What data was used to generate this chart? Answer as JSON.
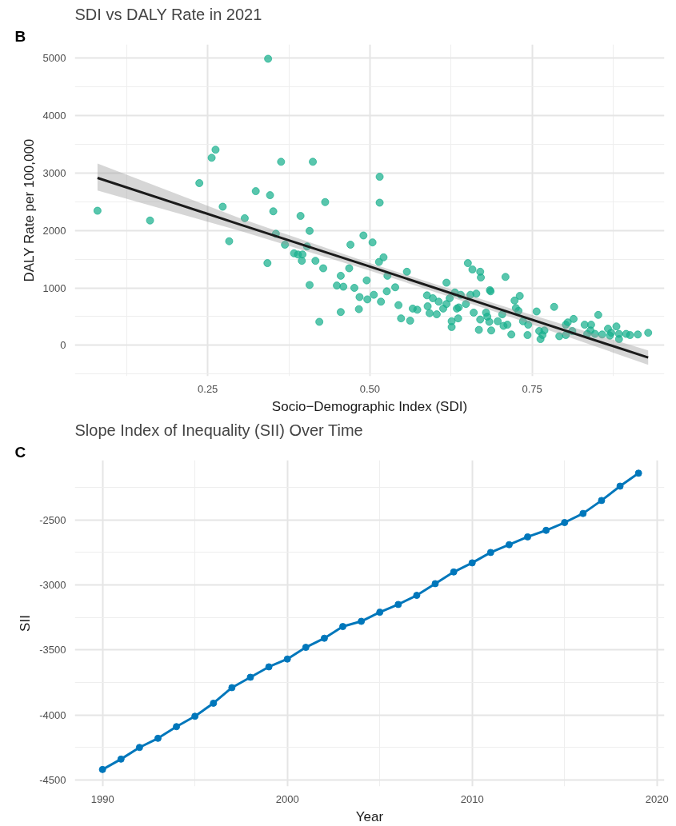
{
  "chart_data": [
    {
      "type": "scatter",
      "title": "SDI vs DALY Rate in 2021",
      "xlabel": "Socio−Demographic Index (SDI)",
      "ylabel": "DALY Rate per 100,000",
      "annotations": [
        "B"
      ],
      "xlim": [
        0.045,
        0.954
      ],
      "ylim": [
        -535,
        5230
      ],
      "xticks": [
        0.25,
        {
          "value": 0.5,
          "label": "0.50"
        },
        0.75
      ],
      "yticks": [
        0,
        1000,
        2000,
        3000,
        4000,
        5000
      ],
      "grid": true,
      "marker": "circle",
      "series": [
        {
          "type": "scatter",
          "color": "#19b08d",
          "x": [
            0.343,
            0.08,
            0.161,
            0.262,
            0.256,
            0.237,
            0.363,
            0.412,
            0.273,
            0.324,
            0.346,
            0.431,
            0.307,
            0.351,
            0.393,
            0.283,
            0.355,
            0.407,
            0.369,
            0.403,
            0.383,
            0.389,
            0.396,
            0.395,
            0.416,
            0.428,
            0.342,
            0.455,
            0.47,
            0.49,
            0.504,
            0.468,
            0.407,
            0.449,
            0.459,
            0.476,
            0.495,
            0.484,
            0.496,
            0.506,
            0.455,
            0.483,
            0.422,
            0.515,
            0.515,
            0.521,
            0.514,
            0.557,
            0.527,
            0.618,
            0.539,
            0.526,
            0.517,
            0.544,
            0.548,
            0.562,
            0.566,
            0.573,
            0.588,
            0.597,
            0.606,
            0.589,
            0.592,
            0.603,
            0.618,
            0.613,
            0.623,
            0.631,
            0.634,
            0.637,
            0.626,
            0.626,
            0.636,
            0.64,
            0.648,
            0.651,
            0.658,
            0.67,
            0.671,
            0.655,
            0.664,
            0.66,
            0.67,
            0.668,
            0.679,
            0.681,
            0.685,
            0.686,
            0.687,
            0.684,
            0.697,
            0.704,
            0.709,
            0.712,
            0.706,
            0.718,
            0.723,
            0.731,
            0.725,
            0.729,
            0.736,
            0.744,
            0.743,
            0.757,
            0.761,
            0.766,
            0.763,
            0.769,
            0.784,
            0.792,
            0.802,
            0.805,
            0.802,
            0.814,
            0.812,
            0.831,
            0.841,
            0.84,
            0.852,
            0.835,
            0.847,
            0.858,
            0.867,
            0.872,
            0.88,
            0.87,
            0.884,
            0.895,
            0.884,
            0.901,
            0.913,
            0.929
          ],
          "values": [
            4980,
            2340,
            2170,
            3400,
            3260,
            2820,
            3190,
            3190,
            2410,
            2680,
            2610,
            2490,
            2210,
            2330,
            2250,
            1810,
            1940,
            1990,
            1750,
            1720,
            1600,
            1580,
            1580,
            1470,
            1470,
            1340,
            1430,
            1210,
            1750,
            1910,
            1790,
            1340,
            1050,
            1040,
            1020,
            1000,
            1130,
            840,
            800,
            880,
            580,
            630,
            410,
            2930,
            2480,
            1530,
            1450,
            1280,
            1210,
            1090,
            1010,
            940,
            760,
            700,
            470,
            430,
            640,
            620,
            870,
            820,
            760,
            680,
            560,
            540,
            720,
            640,
            820,
            920,
            640,
            660,
            420,
            320,
            470,
            880,
            720,
            1430,
            1320,
            1280,
            1180,
            880,
            900,
            570,
            450,
            270,
            570,
            500,
            960,
            940,
            260,
            410,
            420,
            540,
            1190,
            360,
            340,
            190,
            780,
            860,
            650,
            600,
            420,
            360,
            180,
            590,
            250,
            180,
            110,
            260,
            670,
            160,
            360,
            400,
            180,
            460,
            250,
            360,
            360,
            260,
            530,
            200,
            200,
            190,
            290,
            220,
            330,
            170,
            200,
            200,
            110,
            180,
            190,
            220
          ]
        },
        {
          "type": "line",
          "color": "#1a1a1a",
          "marker": "none",
          "x": [
            0.08,
            0.3,
            0.5,
            0.7,
            0.929
          ],
          "values": [
            2910,
            2100,
            1370,
            630,
            -210
          ],
          "lower": [
            2690,
            1990,
            1300,
            560,
            -336
          ],
          "upper": [
            3160,
            2210,
            1430,
            700,
            -86
          ]
        }
      ]
    },
    {
      "type": "line",
      "title": "Slope Index of Inequality (SII) Over Time",
      "xlabel": "Year",
      "ylabel": "SII",
      "annotations": [
        "C"
      ],
      "xlim": [
        1988.5,
        2020.4
      ],
      "ylim": [
        -4550,
        -2040
      ],
      "xticks": [
        1990,
        2000,
        2010,
        2020
      ],
      "yticks": [
        -4500,
        -4000,
        -3500,
        -3000,
        -2500
      ],
      "grid": true,
      "marker": "circle",
      "series": [
        {
          "color": "#0077bb",
          "x": [
            1990,
            1991,
            1992,
            1993,
            1994,
            1995,
            1996,
            1997,
            1998,
            1999,
            2000,
            2001,
            2002,
            2003,
            2004,
            2005,
            2006,
            2007,
            2008,
            2009,
            2010,
            2011,
            2012,
            2013,
            2014,
            2015,
            2016,
            2017,
            2018,
            2019
          ],
          "values": [
            -4420,
            -4340,
            -4250,
            -4180,
            -4090,
            -4010,
            -3910,
            -3790,
            -3710,
            -3630,
            -3570,
            -3480,
            -3410,
            -3320,
            -3280,
            -3210,
            -3150,
            -3080,
            -2990,
            -2900,
            -2830,
            -2750,
            -2690,
            -2630,
            -2580,
            -2520,
            -2450,
            -2350,
            -2240,
            -2140
          ]
        }
      ]
    }
  ]
}
